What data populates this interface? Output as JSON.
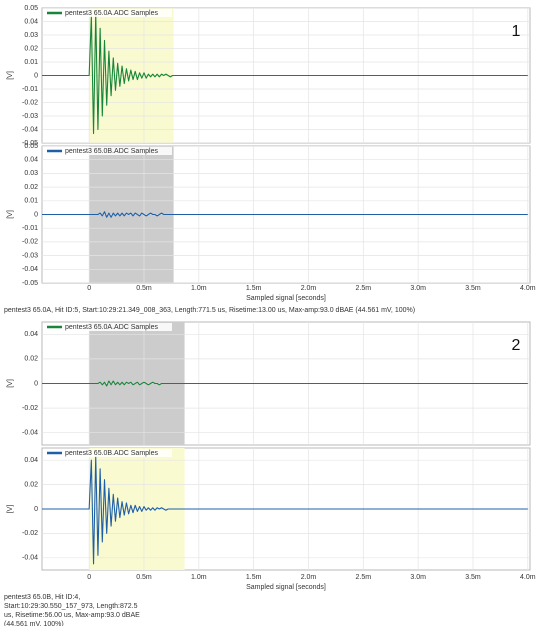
{
  "chart_data": [
    {
      "type": "line",
      "label": "1",
      "x": [
        -0.00043,
        0,
        2e-05,
        4e-05,
        6e-05,
        8e-05,
        0.0001,
        0.00012,
        0.00014,
        0.00016,
        0.00018,
        0.0002,
        0.00022,
        0.00024,
        0.00026,
        0.00028,
        0.0003,
        0.00032,
        0.00034,
        0.00036,
        0.00038,
        0.0004,
        0.00042,
        0.00044,
        0.00046,
        0.00048,
        0.0005,
        0.00052,
        0.00054,
        0.00056,
        0.00058,
        0.0006,
        0.00062,
        0.00064,
        0.00066,
        0.00068,
        0.0007,
        0.00072,
        0.00074,
        0.00076,
        0.00078,
        0.0008,
        0.001,
        0.0015,
        0.002,
        0.0025,
        0.003,
        0.0035,
        0.004
      ],
      "xlim": [
        -0.00043,
        0.00402
      ],
      "xticks": [
        0,
        {
          "value": 0.0005,
          "label": "0.5m"
        },
        {
          "value": 0.001,
          "label": "1.0m"
        },
        {
          "value": 0.0015,
          "label": "1.5m"
        },
        {
          "value": 0.002,
          "label": "2.0m"
        },
        {
          "value": 0.0025,
          "label": "2.5m"
        },
        {
          "value": 0.003,
          "label": "3.0m"
        },
        {
          "value": 0.0035,
          "label": "3.5m"
        },
        {
          "value": 0.004,
          "label": "4.0m"
        }
      ],
      "xlabel": "Sampled signal [seconds]",
      "status": [
        "pentest3 65.0A, Hit ID:5, Start:10:29:21.349_008_363, Length:771.5 us, Risetime:13.00 us, Max-amp:93.0 dBAE (44.561 mV, 100%)"
      ],
      "grid": true,
      "panels": [
        {
          "ylabel": "[V]",
          "ylim": [
            -0.05,
            0.05
          ],
          "yticks": [
            0.05,
            0.04,
            0.03,
            0.02,
            0.01,
            0,
            -0.01,
            -0.02,
            -0.03,
            -0.04,
            -0.05
          ],
          "highlight": {
            "range": [
              0,
              0.00077
            ],
            "color": "#fafad0"
          },
          "series": [
            {
              "name": "pentest3 65.0A.ADC Samples",
              "color": "#17853a",
              "values": [
                0,
                0,
                0.044,
                -0.043,
                0.046,
                -0.04,
                0.035,
                -0.03,
                0.026,
                -0.022,
                0.018,
                -0.015,
                0.013,
                -0.011,
                0.009,
                -0.008,
                0.007,
                -0.006,
                0.005,
                -0.004,
                0.004,
                -0.003,
                0.003,
                -0.003,
                0.002,
                -0.002,
                0.002,
                -0.002,
                0.001,
                -0.001,
                0.001,
                -0.001,
                0.001,
                -0.001,
                0.001,
                0,
                0.001,
                0,
                -0.001,
                0,
                0,
                0,
                0,
                0,
                0,
                0,
                0,
                0,
                0
              ]
            }
          ]
        },
        {
          "ylabel": "[V]",
          "ylim": [
            -0.05,
            0.05
          ],
          "yticks": [
            0.05,
            0.04,
            0.03,
            0.02,
            0.01,
            0,
            -0.01,
            -0.02,
            -0.03,
            -0.04,
            -0.05
          ],
          "highlight": {
            "range": [
              0,
              0.00077
            ],
            "color": "#cccccc"
          },
          "series": [
            {
              "name": "pentest3 65.0B.ADC Samples",
              "color": "#1f5fa8",
              "values": [
                0,
                0,
                0,
                0,
                0,
                0,
                0.001,
                -0.001,
                0.002,
                -0.002,
                0.001,
                -0.002,
                0.001,
                -0.001,
                0.001,
                -0.001,
                0.001,
                -0.001,
                0.001,
                0,
                0.001,
                -0.001,
                0.001,
                0,
                -0.001,
                0.001,
                0,
                -0.001,
                0,
                0.001,
                0,
                0,
                -0.001,
                0,
                0.001,
                0,
                0,
                0,
                0,
                0,
                0,
                0,
                0,
                0,
                0,
                0,
                0,
                0,
                0
              ]
            }
          ]
        }
      ]
    },
    {
      "type": "line",
      "label": "2",
      "x": [
        -0.00043,
        0,
        2e-05,
        4e-05,
        6e-05,
        8e-05,
        0.0001,
        0.00012,
        0.00014,
        0.00016,
        0.00018,
        0.0002,
        0.00022,
        0.00024,
        0.00026,
        0.00028,
        0.0003,
        0.00032,
        0.00034,
        0.00036,
        0.00038,
        0.0004,
        0.00042,
        0.00044,
        0.00046,
        0.00048,
        0.0005,
        0.00052,
        0.00054,
        0.00056,
        0.00058,
        0.0006,
        0.00062,
        0.00064,
        0.00066,
        0.00068,
        0.0007,
        0.00072,
        0.00074,
        0.00076,
        0.00078,
        0.0008,
        0.001,
        0.0015,
        0.002,
        0.0025,
        0.003,
        0.0035,
        0.004
      ],
      "xlim": [
        -0.00043,
        0.00402
      ],
      "xticks": [
        0,
        {
          "value": 0.0005,
          "label": "0.5m"
        },
        {
          "value": 0.001,
          "label": "1.0m"
        },
        {
          "value": 0.0015,
          "label": "1.5m"
        },
        {
          "value": 0.002,
          "label": "2.0m"
        },
        {
          "value": 0.0025,
          "label": "2.5m"
        },
        {
          "value": 0.003,
          "label": "3.0m"
        },
        {
          "value": 0.0035,
          "label": "3.5m"
        },
        {
          "value": 0.004,
          "label": "4.0m"
        }
      ],
      "xlabel": "Sampled signal [seconds]",
      "status": [
        "pentest3 65.0B, Hit ID:4,",
        "Start:10:29:30.550_157_973, Length:872.5",
        "us, Risetime:56.00 us, Max-amp:93.0 dBAE",
        "(44.561 mV, 100%)"
      ],
      "grid": true,
      "panels": [
        {
          "ylabel": "[V]",
          "ylim": [
            -0.05,
            0.05
          ],
          "yticks": [
            0.04,
            0.02,
            0,
            -0.02,
            -0.04
          ],
          "highlight": {
            "range": [
              0,
              0.00087
            ],
            "color": "#cccccc"
          },
          "series": [
            {
              "name": "pentest3 65.0A.ADC Samples",
              "color": "#17853a",
              "values": [
                0,
                0,
                0,
                0,
                0,
                0,
                0.001,
                -0.001,
                0.001,
                -0.002,
                0.002,
                -0.001,
                0.002,
                -0.001,
                0.001,
                -0.001,
                0.001,
                -0.001,
                0.001,
                0,
                0.001,
                -0.001,
                0,
                0.001,
                -0.001,
                0,
                0.001,
                0,
                -0.001,
                0,
                0.001,
                0,
                0,
                -0.001,
                0,
                0,
                0,
                0,
                0,
                0,
                0,
                0,
                0,
                0,
                0,
                0,
                0,
                0,
                0
              ]
            }
          ]
        },
        {
          "ylabel": "[V]",
          "ylim": [
            -0.05,
            0.05
          ],
          "yticks": [
            0.04,
            0.02,
            0,
            -0.02,
            -0.04
          ],
          "highlight": {
            "range": [
              0,
              0.00087
            ],
            "color": "#fafad0"
          },
          "series": [
            {
              "name": "pentest3 65.0B.ADC Samples",
              "color": "#1f5fa8",
              "values": [
                0,
                0,
                0.04,
                -0.045,
                0.043,
                -0.038,
                0.033,
                -0.027,
                0.024,
                -0.02,
                0.017,
                -0.014,
                0.012,
                -0.01,
                0.009,
                -0.007,
                0.006,
                -0.005,
                0.005,
                -0.004,
                0.003,
                -0.003,
                0.003,
                -0.002,
                0.002,
                -0.002,
                0.002,
                -0.001,
                0.001,
                -0.001,
                0.001,
                -0.001,
                0.001,
                0,
                0.001,
                0,
                -0.001,
                0,
                0,
                0,
                0,
                0,
                0,
                0,
                0,
                0,
                0,
                0,
                0
              ]
            }
          ]
        }
      ]
    }
  ]
}
